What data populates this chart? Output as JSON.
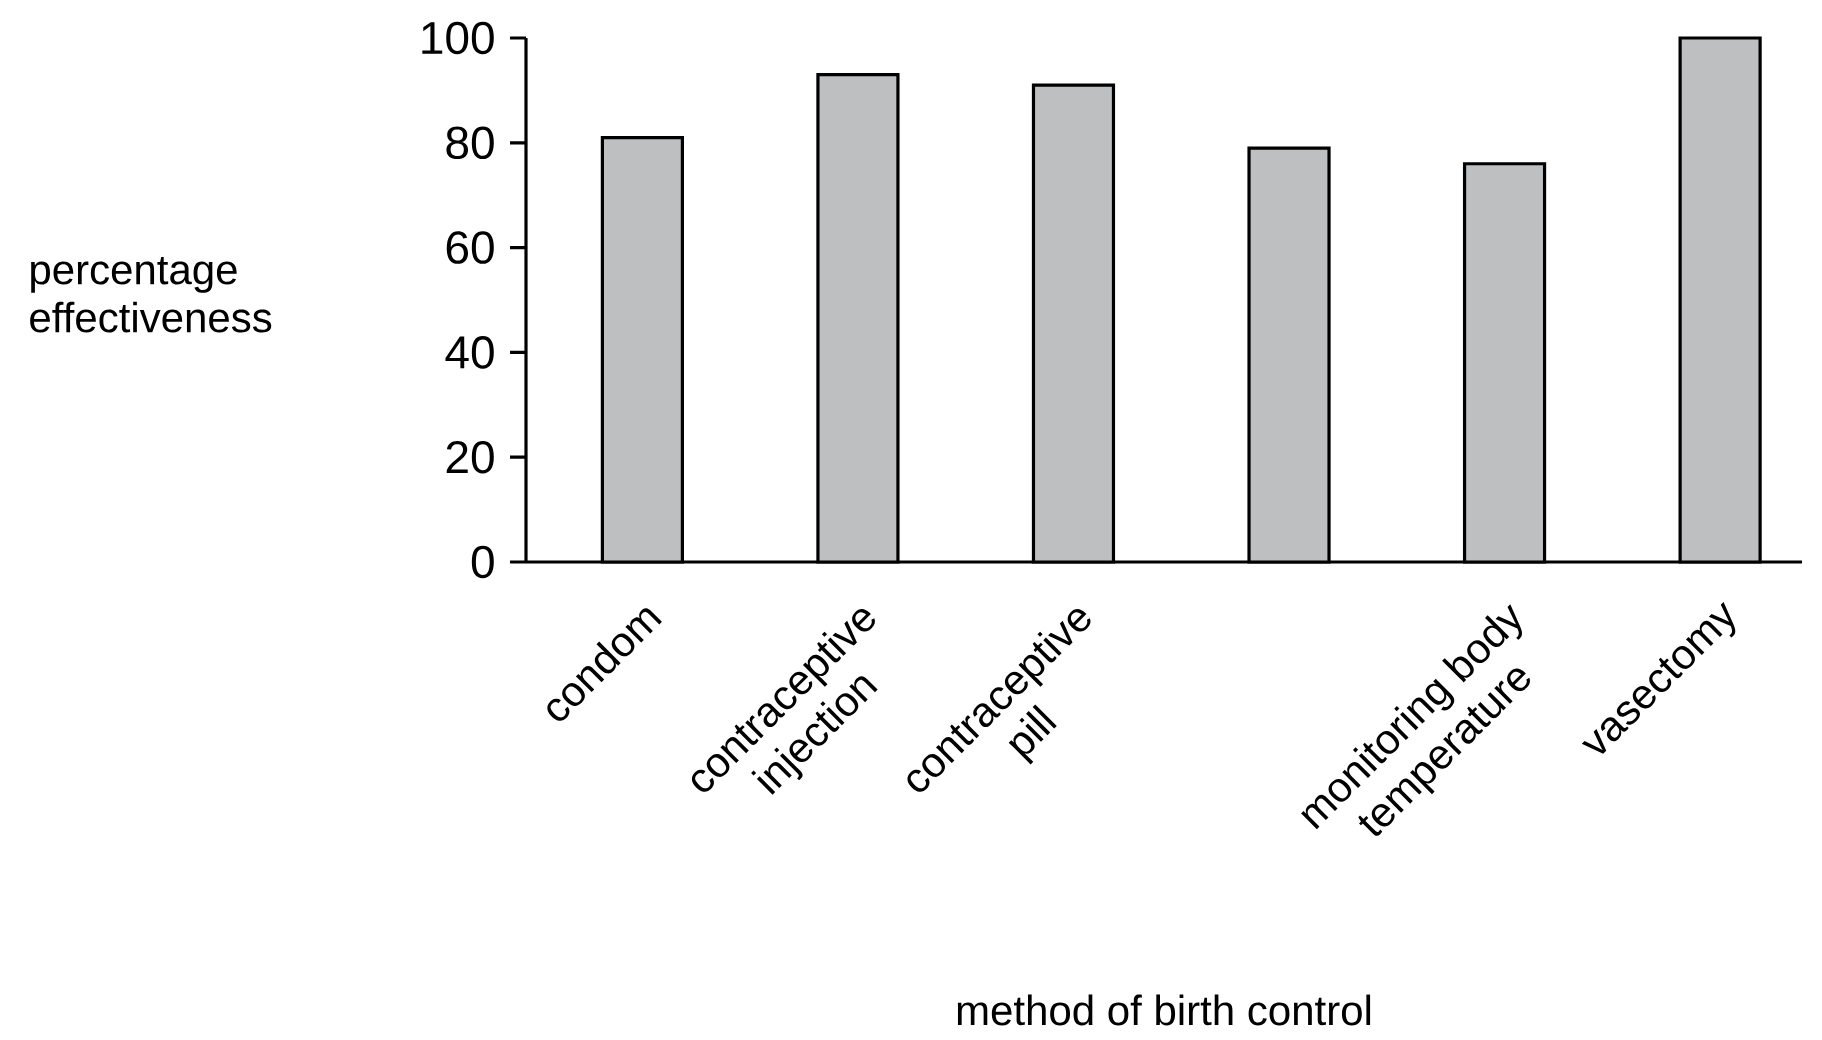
{
  "chart_data": {
    "type": "bar",
    "xlabel": "method of birth control",
    "ylabel": "percentage effectiveness",
    "categories": [
      "condom",
      "contraceptive injection",
      "contraceptive pill",
      null,
      "monitoring body temperature",
      "vasectomy"
    ],
    "values": [
      81,
      93,
      91,
      79,
      76,
      100
    ],
    "color": "#bebfc1",
    "ylim": [
      0,
      100
    ],
    "yticks": [
      0,
      20,
      40,
      60,
      80,
      100
    ]
  }
}
